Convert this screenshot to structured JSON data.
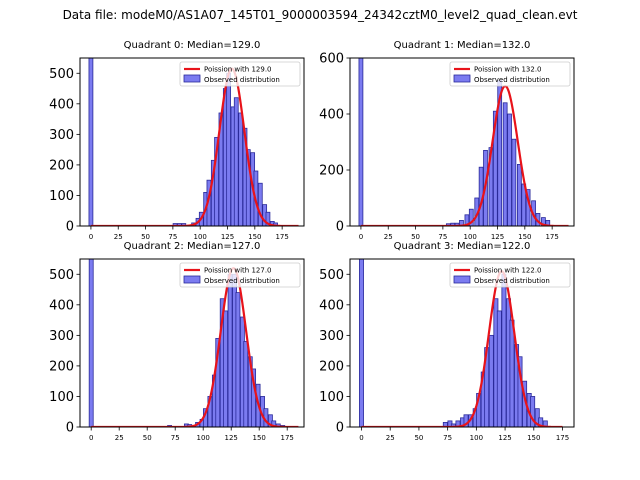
{
  "figure_title": "Data file: modeM0/AS1A07_145T01_9000003594_24342cztM0_level2_quad_clean.evt",
  "colors": {
    "poisson": "#e8131a",
    "bar_fill": "#7b7bf0",
    "bar_edge": "#2a2a9a"
  },
  "chart_data": [
    {
      "type": "bar",
      "title": "Quadrant 0: Median=129.0",
      "xlim": [
        -10,
        195
      ],
      "ylim": [
        0,
        550
      ],
      "xticks": [
        0,
        25,
        50,
        75,
        100,
        125,
        150,
        175
      ],
      "yticks": [
        0,
        100,
        200,
        300,
        400,
        500
      ],
      "legend_position": "top-right",
      "legend": [
        "Poission with 129.0",
        "Observed distribution"
      ],
      "median": 129.0,
      "poisson_amplitude": 515,
      "poisson_sigma": 11.4,
      "poisson_range": [
        0,
        190
      ],
      "bin_width": 3.6,
      "bin_centers": [
        0,
        77,
        81,
        85,
        94,
        98,
        101,
        105,
        108,
        112,
        115,
        119,
        123,
        126,
        130,
        133,
        137,
        141,
        144,
        148,
        151,
        155,
        159,
        162,
        166,
        169
      ],
      "values": [
        550,
        8,
        8,
        8,
        10,
        25,
        45,
        110,
        150,
        215,
        290,
        370,
        450,
        500,
        390,
        420,
        370,
        320,
        250,
        240,
        180,
        140,
        70,
        45,
        15,
        10
      ]
    },
    {
      "type": "bar",
      "title": "Quadrant 1: Median=132.0",
      "xlim": [
        -10,
        195
      ],
      "ylim": [
        0,
        600
      ],
      "xticks": [
        0,
        25,
        50,
        75,
        100,
        125,
        150,
        175
      ],
      "yticks": [
        0,
        200,
        400,
        600
      ],
      "legend_position": "top-right",
      "legend": [
        "Poission with 132.0",
        "Observed distribution"
      ],
      "median": 132.0,
      "poisson_amplitude": 500,
      "poisson_sigma": 11.5,
      "poisson_range": [
        0,
        190
      ],
      "bin_width": 3.6,
      "bin_centers": [
        0,
        80,
        84,
        88,
        92,
        97,
        101,
        106,
        110,
        114,
        119,
        123,
        127,
        132,
        136,
        140,
        145,
        149,
        153,
        158,
        162,
        167,
        171
      ],
      "values": [
        600,
        8,
        10,
        10,
        20,
        40,
        60,
        100,
        210,
        270,
        280,
        410,
        520,
        440,
        400,
        310,
        220,
        150,
        130,
        90,
        45,
        30,
        20
      ]
    },
    {
      "type": "bar",
      "title": "Quadrant 2: Median=127.0",
      "xlim": [
        -10,
        190
      ],
      "ylim": [
        0,
        550
      ],
      "xticks": [
        0,
        25,
        50,
        75,
        100,
        125,
        150,
        175
      ],
      "yticks": [
        0,
        100,
        200,
        300,
        400,
        500
      ],
      "legend_position": "top-right",
      "legend": [
        "Poission with 127.0",
        "Observed distribution"
      ],
      "median": 127.0,
      "poisson_amplitude": 520,
      "poisson_sigma": 11.3,
      "poisson_range": [
        0,
        185
      ],
      "bin_width": 3.6,
      "bin_centers": [
        0,
        70,
        85,
        88,
        95,
        99,
        102,
        106,
        110,
        113,
        117,
        120,
        124,
        128,
        131,
        135,
        138,
        142,
        145,
        149,
        153,
        156,
        160,
        163,
        167,
        171
      ],
      "values": [
        550,
        5,
        10,
        8,
        15,
        25,
        60,
        100,
        170,
        290,
        420,
        380,
        500,
        500,
        440,
        360,
        280,
        230,
        190,
        140,
        100,
        60,
        40,
        20,
        10,
        5
      ]
    },
    {
      "type": "bar",
      "title": "Quadrant 3: Median=122.0",
      "xlim": [
        -10,
        185
      ],
      "ylim": [
        0,
        550
      ],
      "xticks": [
        0,
        25,
        50,
        75,
        100,
        125,
        150,
        175
      ],
      "yticks": [
        0,
        100,
        200,
        300,
        400,
        500
      ],
      "legend_position": "top-right",
      "legend": [
        "Poission with 122.0",
        "Observed distribution"
      ],
      "median": 122.0,
      "poisson_amplitude": 510,
      "poisson_sigma": 11.0,
      "poisson_range": [
        0,
        175
      ],
      "bin_width": 3.6,
      "bin_centers": [
        0,
        73,
        77,
        80,
        84,
        88,
        91,
        95,
        99,
        102,
        106,
        109,
        113,
        117,
        120,
        124,
        128,
        131,
        135,
        138,
        142,
        146,
        149,
        153,
        156,
        160
      ],
      "values": [
        550,
        15,
        20,
        10,
        20,
        30,
        40,
        40,
        60,
        110,
        180,
        260,
        300,
        420,
        380,
        500,
        420,
        350,
        270,
        230,
        150,
        110,
        100,
        60,
        30,
        20
      ]
    }
  ]
}
